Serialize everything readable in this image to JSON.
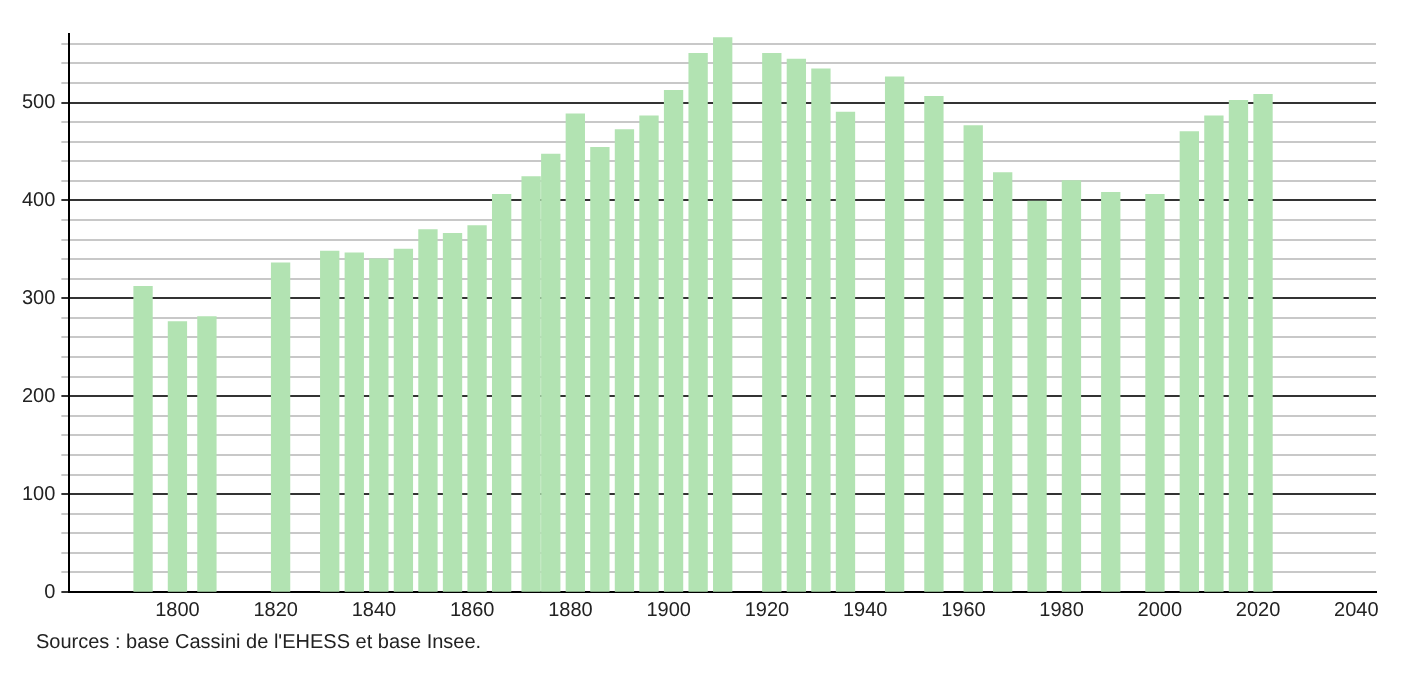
{
  "chart_data": {
    "type": "bar",
    "x": [
      1793,
      1800,
      1806,
      1821,
      1831,
      1836,
      1841,
      1846,
      1851,
      1856,
      1861,
      1866,
      1872,
      1876,
      1881,
      1886,
      1891,
      1896,
      1901,
      1906,
      1911,
      1921,
      1926,
      1931,
      1936,
      1946,
      1954,
      1962,
      1968,
      1975,
      1982,
      1990,
      1999,
      2006,
      2011,
      2016,
      2021
    ],
    "values": [
      312,
      276,
      281,
      336,
      348,
      346,
      340,
      350,
      370,
      366,
      374,
      406,
      424,
      447,
      488,
      454,
      472,
      486,
      512,
      550,
      566,
      550,
      544,
      534,
      490,
      526,
      506,
      476,
      428,
      399,
      420,
      408,
      406,
      470,
      486,
      502,
      508
    ],
    "color": "#b2e3b2",
    "xlim": [
      1778,
      2044
    ],
    "xticks": [
      1800,
      1820,
      1840,
      1860,
      1880,
      1900,
      1920,
      1940,
      1960,
      1980,
      2000,
      2020,
      2040
    ],
    "ylim": [
      0,
      570
    ],
    "yticks": [
      0,
      {
        "value": 20,
        "label": null
      },
      {
        "value": 40,
        "label": null
      },
      {
        "value": 60,
        "label": null
      },
      {
        "value": 80,
        "label": null
      },
      100,
      {
        "value": 120,
        "label": null
      },
      {
        "value": 140,
        "label": null
      },
      {
        "value": 160,
        "label": null
      },
      {
        "value": 180,
        "label": null
      },
      200,
      {
        "value": 220,
        "label": null
      },
      {
        "value": 240,
        "label": null
      },
      {
        "value": 260,
        "label": null
      },
      {
        "value": 280,
        "label": null
      },
      300,
      {
        "value": 320,
        "label": null
      },
      {
        "value": 340,
        "label": null
      },
      {
        "value": 360,
        "label": null
      },
      {
        "value": 380,
        "label": null
      },
      400,
      {
        "value": 420,
        "label": null
      },
      {
        "value": 440,
        "label": null
      },
      {
        "value": 460,
        "label": null
      },
      {
        "value": 480,
        "label": null
      },
      500,
      {
        "value": 520,
        "label": null
      },
      {
        "value": 540,
        "label": null
      },
      {
        "value": 560,
        "label": null
      }
    ],
    "grid": "y",
    "legend": false,
    "annotations": [
      "Sources : base Cassini de l'EHESS et base Insee."
    ]
  }
}
